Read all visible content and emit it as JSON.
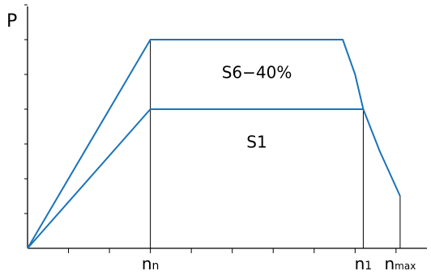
{
  "chart_data": {
    "type": "line",
    "title": "",
    "ylabel": "P",
    "xlabel": "",
    "xlim": [
      0,
      9.3
    ],
    "ylim": [
      0,
      7
    ],
    "x_tick_count": 9,
    "y_tick_count": 7,
    "x_markers": [
      {
        "x": 3,
        "label": "n",
        "sub": "n"
      },
      {
        "x": 8.2,
        "label": "n",
        "sub": "1"
      },
      {
        "x": 9.1,
        "label": "n",
        "sub": "max"
      }
    ],
    "series": [
      {
        "name": "S6−40%",
        "points": [
          [
            0,
            0
          ],
          [
            3,
            6
          ],
          [
            7.7,
            6
          ],
          [
            8.0,
            5.0
          ],
          [
            8.2,
            4.0
          ],
          [
            8.6,
            2.8
          ],
          [
            9.1,
            1.5
          ]
        ]
      },
      {
        "name": "S1",
        "points": [
          [
            0,
            0
          ],
          [
            3,
            4
          ],
          [
            8.2,
            4
          ]
        ]
      }
    ],
    "annotations": [
      {
        "text": "S6−40%",
        "x": 5.6,
        "y": 4.9
      },
      {
        "text": "S1",
        "x": 5.6,
        "y": 2.9
      }
    ],
    "colors": {
      "curve": "#1a73b8",
      "axis": "#000000"
    },
    "grid": false
  }
}
